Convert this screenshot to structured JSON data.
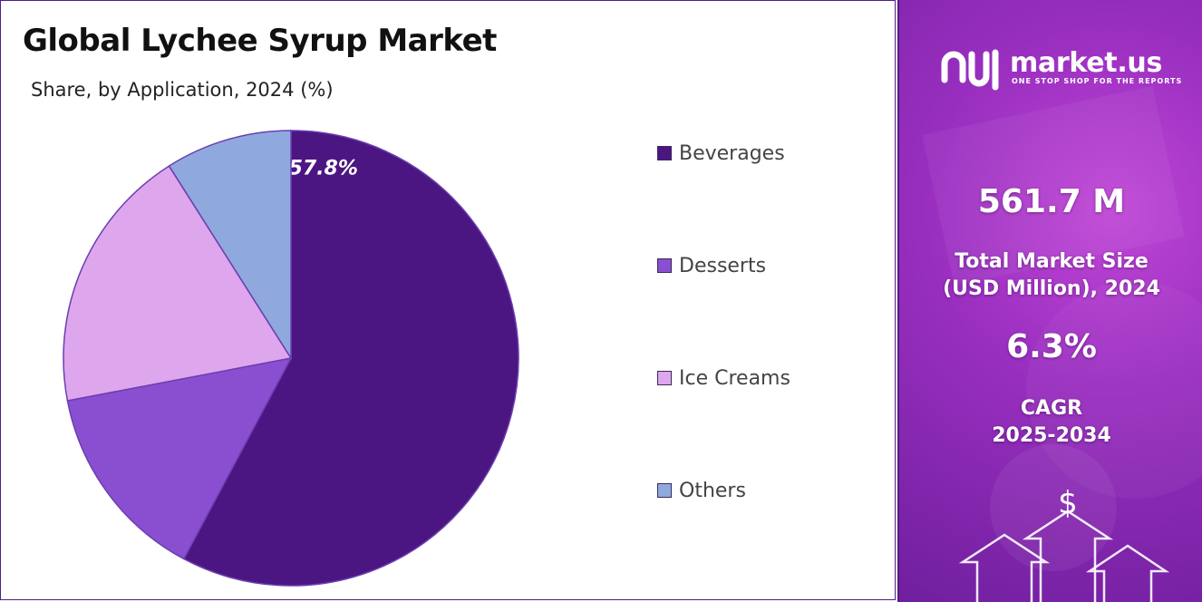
{
  "chart_data": {
    "type": "pie",
    "title": "Global Lychee Syrup Market",
    "subtitle": "Share, by Application, 2024 (%)",
    "categories": [
      "Beverages",
      "Desserts",
      "Ice Creams",
      "Others"
    ],
    "values": [
      57.8,
      14.2,
      19.0,
      9.0
    ],
    "colors": [
      "#4c1682",
      "#8a4fd0",
      "#dea6ec",
      "#8fa9de"
    ],
    "data_labels": [
      "57.8%",
      "",
      "",
      ""
    ],
    "legend_position": "right"
  },
  "side_panel": {
    "brand": {
      "name": "market.us",
      "tagline": "ONE STOP SHOP FOR THE REPORTS"
    },
    "market_size": {
      "value": "561.7 M",
      "label_line1": "Total Market Size",
      "label_line2": "(USD Million), 2024"
    },
    "cagr": {
      "value": "6.3%",
      "label_line1": "CAGR",
      "label_line2": "2025-2034"
    },
    "currency_symbol": "$"
  }
}
